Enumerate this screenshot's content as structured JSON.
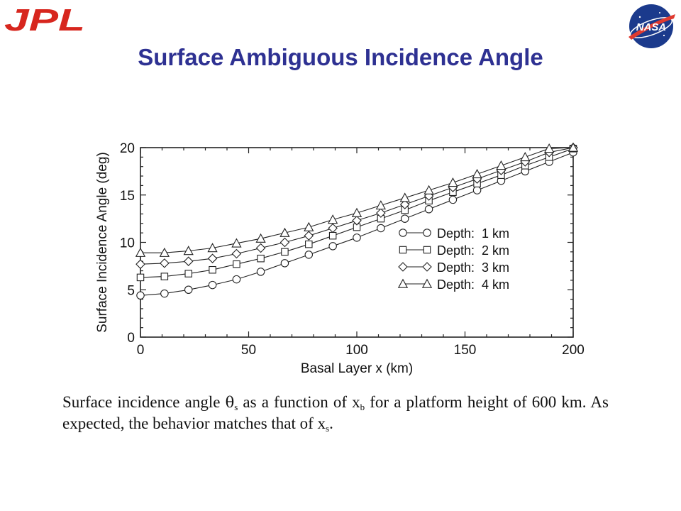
{
  "header": {
    "jpl_logo_text": "JPL",
    "nasa_logo_text": "NASA",
    "title": "Surface Ambiguous Incidence Angle",
    "brand_colors": {
      "jpl_red": "#d7261e",
      "title_blue": "#2e3192",
      "nasa_blue": "#1b3a8c"
    }
  },
  "caption": {
    "part1": "Surface incidence angle ",
    "theta": "θ",
    "theta_sub": "s",
    "part2": " as a function of x",
    "xb_sub": "b",
    "part3": " for a platform height of 600 km. As expected, the behavior matches that of x",
    "xs_sub": "s",
    "part4": "."
  },
  "chart_data": {
    "type": "line",
    "title": "",
    "xlabel": "Basal Layer x (km)",
    "ylabel": "Surface Incidence Angle (deg)",
    "xlim": [
      0,
      200
    ],
    "ylim": [
      0,
      20
    ],
    "xticks": [
      "0",
      "50",
      "100",
      "150",
      "200"
    ],
    "yticks": [
      "0",
      "5",
      "10",
      "15",
      "20"
    ],
    "grid": false,
    "legend_position": "lower-right",
    "x": [
      0,
      11.1,
      22.2,
      33.3,
      44.4,
      55.6,
      66.7,
      77.8,
      88.9,
      100,
      111.1,
      122.2,
      133.3,
      144.4,
      155.6,
      166.7,
      177.8,
      188.9,
      200
    ],
    "series": [
      {
        "name": "Depth:  1 km",
        "marker": "circle",
        "values": [
          4.4,
          4.6,
          5.0,
          5.5,
          6.1,
          6.9,
          7.8,
          8.7,
          9.6,
          10.5,
          11.5,
          12.5,
          13.5,
          14.5,
          15.5,
          16.5,
          17.5,
          18.5,
          19.5
        ]
      },
      {
        "name": "Depth:  2 km",
        "marker": "square",
        "values": [
          6.3,
          6.4,
          6.7,
          7.1,
          7.7,
          8.3,
          9.0,
          9.8,
          10.7,
          11.6,
          12.5,
          13.4,
          14.4,
          15.3,
          16.2,
          17.1,
          18.1,
          19.0,
          19.9
        ]
      },
      {
        "name": "Depth:  3 km",
        "marker": "diamond",
        "values": [
          7.7,
          7.8,
          8.0,
          8.3,
          8.8,
          9.4,
          10.0,
          10.7,
          11.5,
          12.3,
          13.1,
          14.0,
          14.9,
          15.8,
          16.7,
          17.6,
          18.5,
          19.5,
          20.0
        ]
      },
      {
        "name": "Depth:  4 km",
        "marker": "triangle",
        "values": [
          8.9,
          8.9,
          9.1,
          9.4,
          9.9,
          10.4,
          11.0,
          11.6,
          12.4,
          13.1,
          13.9,
          14.7,
          15.5,
          16.3,
          17.2,
          18.1,
          19.0,
          19.9,
          20.0
        ]
      }
    ]
  }
}
